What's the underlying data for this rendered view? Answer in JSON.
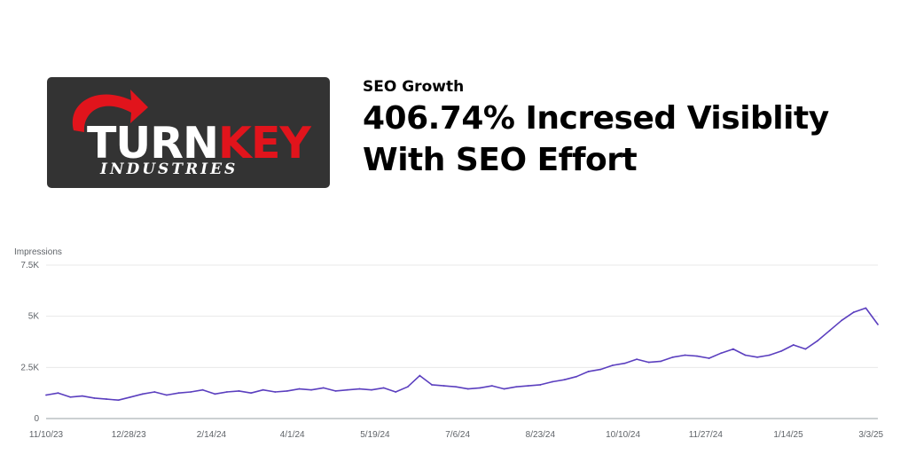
{
  "logo": {
    "word_a": "TU",
    "word_r": "R",
    "word_n": "N",
    "word_b": "KEY",
    "sub": "INDUSTRIES",
    "colors": {
      "background": "#333333",
      "accent": "#e1141c",
      "text": "#ffffff"
    }
  },
  "header": {
    "eyebrow": "SEO Growth",
    "headline_line1": "406.74% Incresed Visiblity",
    "headline_line2": "With SEO Effort"
  },
  "chart_data": {
    "type": "line",
    "ylabel": "Impressions",
    "ylim": [
      0,
      7500
    ],
    "yticks": [
      {
        "value": 0,
        "label": "0"
      },
      {
        "value": 2500,
        "label": "2.5K"
      },
      {
        "value": 5000,
        "label": "5K"
      },
      {
        "value": 7500,
        "label": "7.5K"
      }
    ],
    "xlim": [
      "2023-11-10",
      "2025-03-07"
    ],
    "xticks": [
      {
        "date": "2023-11-10",
        "label": "11/10/23"
      },
      {
        "date": "2023-12-28",
        "label": "12/28/23"
      },
      {
        "date": "2024-02-14",
        "label": "2/14/24"
      },
      {
        "date": "2024-04-01",
        "label": "4/1/24"
      },
      {
        "date": "2024-05-19",
        "label": "5/19/24"
      },
      {
        "date": "2024-07-06",
        "label": "7/6/24"
      },
      {
        "date": "2024-08-23",
        "label": "8/23/24"
      },
      {
        "date": "2024-10-10",
        "label": "10/10/24"
      },
      {
        "date": "2024-11-27",
        "label": "11/27/24"
      },
      {
        "date": "2025-01-14",
        "label": "1/14/25"
      },
      {
        "date": "2025-03-03",
        "label": "3/3/25"
      }
    ],
    "grid": true,
    "series": [
      {
        "color": "#5b3fbf",
        "x": [
          "2023-11-10",
          "2023-11-17",
          "2023-11-24",
          "2023-12-01",
          "2023-12-08",
          "2023-12-15",
          "2023-12-22",
          "2023-12-29",
          "2024-01-05",
          "2024-01-12",
          "2024-01-19",
          "2024-01-26",
          "2024-02-02",
          "2024-02-09",
          "2024-02-16",
          "2024-02-23",
          "2024-03-01",
          "2024-03-08",
          "2024-03-15",
          "2024-03-22",
          "2024-03-29",
          "2024-04-05",
          "2024-04-12",
          "2024-04-19",
          "2024-04-26",
          "2024-05-03",
          "2024-05-10",
          "2024-05-17",
          "2024-05-24",
          "2024-05-31",
          "2024-06-07",
          "2024-06-14",
          "2024-06-21",
          "2024-06-28",
          "2024-07-05",
          "2024-07-12",
          "2024-07-19",
          "2024-07-26",
          "2024-08-02",
          "2024-08-09",
          "2024-08-16",
          "2024-08-23",
          "2024-08-30",
          "2024-09-06",
          "2024-09-13",
          "2024-09-20",
          "2024-09-27",
          "2024-10-04",
          "2024-10-11",
          "2024-10-18",
          "2024-10-25",
          "2024-11-01",
          "2024-11-08",
          "2024-11-15",
          "2024-11-22",
          "2024-11-29",
          "2024-12-06",
          "2024-12-13",
          "2024-12-20",
          "2024-12-27",
          "2025-01-03",
          "2025-01-10",
          "2025-01-17",
          "2025-01-24",
          "2025-01-31",
          "2025-02-07",
          "2025-02-14",
          "2025-02-21",
          "2025-02-28",
          "2025-03-07"
        ],
        "y": [
          1150,
          1250,
          1050,
          1100,
          1000,
          950,
          900,
          1050,
          1200,
          1300,
          1150,
          1250,
          1300,
          1400,
          1200,
          1300,
          1350,
          1250,
          1400,
          1300,
          1350,
          1450,
          1400,
          1500,
          1350,
          1400,
          1450,
          1400,
          1500,
          1300,
          1550,
          2100,
          1650,
          1600,
          1550,
          1450,
          1500,
          1600,
          1450,
          1550,
          1600,
          1650,
          1800,
          1900,
          2050,
          2300,
          2400,
          2600,
          2700,
          2900,
          2750,
          2800,
          3000,
          3100,
          3050,
          2950,
          3200,
          3400,
          3100,
          3000,
          3100,
          3300,
          3600,
          3400,
          3800,
          4300,
          4800,
          5200,
          5400,
          4600
        ]
      }
    ]
  }
}
